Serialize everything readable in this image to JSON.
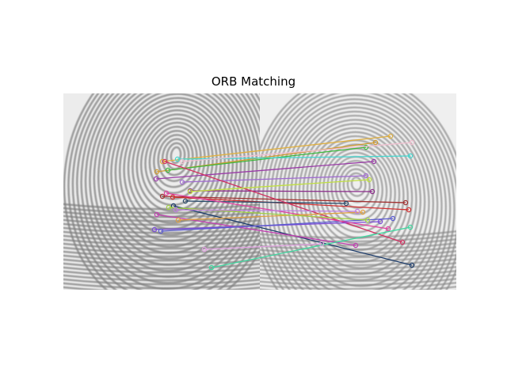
{
  "figure": {
    "title": "ORB Matching"
  },
  "matches": [
    {
      "left": [
        205,
        204
      ],
      "right": [
        493,
        172
      ],
      "color": "#e0b040"
    },
    {
      "left": [
        198,
        217
      ],
      "right": [
        474,
        180
      ],
      "color": "#d09a30"
    },
    {
      "left": [
        212,
        215
      ],
      "right": [
        462,
        186
      ],
      "color": "#3cb83c"
    },
    {
      "left": [
        224,
        201
      ],
      "right": [
        518,
        197
      ],
      "color": "#40d8d0"
    },
    {
      "left": [
        197,
        226
      ],
      "right": [
        472,
        204
      ],
      "color": "#9a3aa8"
    },
    {
      "left": [
        230,
        230
      ],
      "right": [
        462,
        222
      ],
      "color": "#a06ad0"
    },
    {
      "left": [
        240,
        241
      ],
      "right": [
        470,
        242
      ],
      "color": "#8a2a8a"
    },
    {
      "left": [
        205,
        248
      ],
      "right": [
        512,
        256
      ],
      "color": "#a03030"
    },
    {
      "left": [
        218,
        249
      ],
      "right": [
        516,
        265
      ],
      "color": "#d03030"
    },
    {
      "left": [
        234,
        254
      ],
      "right": [
        437,
        257
      ],
      "color": "#2a4a6a"
    },
    {
      "left": [
        219,
        260
      ],
      "right": [
        520,
        335
      ],
      "color": "#1a3a6a"
    },
    {
      "left": [
        208,
        204
      ],
      "right": [
        508,
        306
      ],
      "color": "#d03060"
    },
    {
      "left": [
        198,
        271
      ],
      "right": [
        449,
        310
      ],
      "color": "#c040b0"
    },
    {
      "left": [
        195,
        290
      ],
      "right": [
        480,
        280
      ],
      "color": "#7a4ad8"
    },
    {
      "left": [
        203,
        292
      ],
      "right": [
        496,
        276
      ],
      "color": "#5a5ad0"
    },
    {
      "left": [
        210,
        244
      ],
      "right": [
        490,
        289
      ],
      "color": "#e040a0"
    },
    {
      "left": [
        225,
        278
      ],
      "right": [
        458,
        268
      ],
      "color": "#e0a040"
    },
    {
      "left": [
        213,
        262
      ],
      "right": [
        464,
        278
      ],
      "color": "#a0d040"
    },
    {
      "left": [
        267,
        338
      ],
      "right": [
        518,
        287
      ],
      "color": "#40d8a0"
    },
    {
      "left": [
        258,
        315
      ],
      "right": [
        406,
        308
      ],
      "color": "#e0a0e0"
    },
    {
      "left": [
        230,
        204
      ],
      "right": [
        520,
        180
      ],
      "color": "#f0c0d0"
    },
    {
      "left": [
        240,
        242
      ],
      "right": [
        466,
        227
      ],
      "color": "#c0e040"
    },
    {
      "left": [
        222,
        265
      ],
      "right": [
        451,
        267
      ],
      "color": "#c080e0"
    }
  ]
}
